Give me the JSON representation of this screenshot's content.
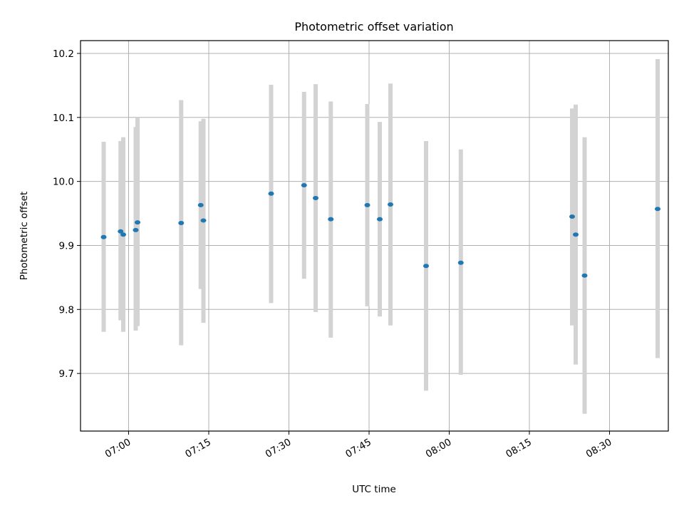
{
  "chart_data": {
    "type": "scatter",
    "title": "Photometric offset variation",
    "xlabel": "UTC time",
    "ylabel": "Photometric offset",
    "x_is_time": true,
    "xlim": [
      "06:51",
      "08:41"
    ],
    "ylim": [
      9.61,
      10.22
    ],
    "x_ticks": [
      "07:00",
      "07:15",
      "07:30",
      "07:45",
      "08:00",
      "08:15",
      "08:30"
    ],
    "y_ticks": [
      9.7,
      9.8,
      9.9,
      10.0,
      10.1,
      10.2
    ],
    "grid": true,
    "colors": {
      "points": "#1f77b4",
      "errorbars": "#d3d3d3",
      "grid": "#b0b0b0"
    },
    "series": [
      {
        "points": [
          {
            "x": "06:55:20",
            "y": 9.913,
            "yerr_low": 9.765,
            "yerr_high": 10.062
          },
          {
            "x": "06:58:30",
            "y": 9.922,
            "yerr_low": 9.783,
            "yerr_high": 10.063
          },
          {
            "x": "06:59:00",
            "y": 9.917,
            "yerr_low": 9.765,
            "yerr_high": 10.069
          },
          {
            "x": "07:01:20",
            "y": 9.924,
            "yerr_low": 9.767,
            "yerr_high": 10.085
          },
          {
            "x": "07:01:40",
            "y": 9.936,
            "yerr_low": 9.774,
            "yerr_high": 10.1
          },
          {
            "x": "07:09:50",
            "y": 9.935,
            "yerr_low": 9.744,
            "yerr_high": 10.127
          },
          {
            "x": "07:13:30",
            "y": 9.963,
            "yerr_low": 9.832,
            "yerr_high": 10.094
          },
          {
            "x": "07:14:00",
            "y": 9.939,
            "yerr_low": 9.779,
            "yerr_high": 10.098
          },
          {
            "x": "07:26:40",
            "y": 9.981,
            "yerr_low": 9.81,
            "yerr_high": 10.151
          },
          {
            "x": "07:32:50",
            "y": 9.994,
            "yerr_low": 9.848,
            "yerr_high": 10.14
          },
          {
            "x": "07:35:00",
            "y": 9.974,
            "yerr_low": 9.796,
            "yerr_high": 10.152
          },
          {
            "x": "07:37:50",
            "y": 9.941,
            "yerr_low": 9.756,
            "yerr_high": 10.125
          },
          {
            "x": "07:44:40",
            "y": 9.963,
            "yerr_low": 9.805,
            "yerr_high": 10.121
          },
          {
            "x": "07:47:00",
            "y": 9.941,
            "yerr_low": 9.789,
            "yerr_high": 10.093
          },
          {
            "x": "07:49:00",
            "y": 9.964,
            "yerr_low": 9.775,
            "yerr_high": 10.153
          },
          {
            "x": "07:55:40",
            "y": 9.868,
            "yerr_low": 9.673,
            "yerr_high": 10.063
          },
          {
            "x": "08:02:10",
            "y": 9.873,
            "yerr_low": 9.698,
            "yerr_high": 10.05
          },
          {
            "x": "08:23:00",
            "y": 9.945,
            "yerr_low": 9.775,
            "yerr_high": 10.114
          },
          {
            "x": "08:23:40",
            "y": 9.917,
            "yerr_low": 9.714,
            "yerr_high": 10.12
          },
          {
            "x": "08:25:20",
            "y": 9.853,
            "yerr_low": 9.637,
            "yerr_high": 10.069
          },
          {
            "x": "08:39:00",
            "y": 9.957,
            "yerr_low": 9.724,
            "yerr_high": 10.191
          }
        ]
      }
    ]
  }
}
